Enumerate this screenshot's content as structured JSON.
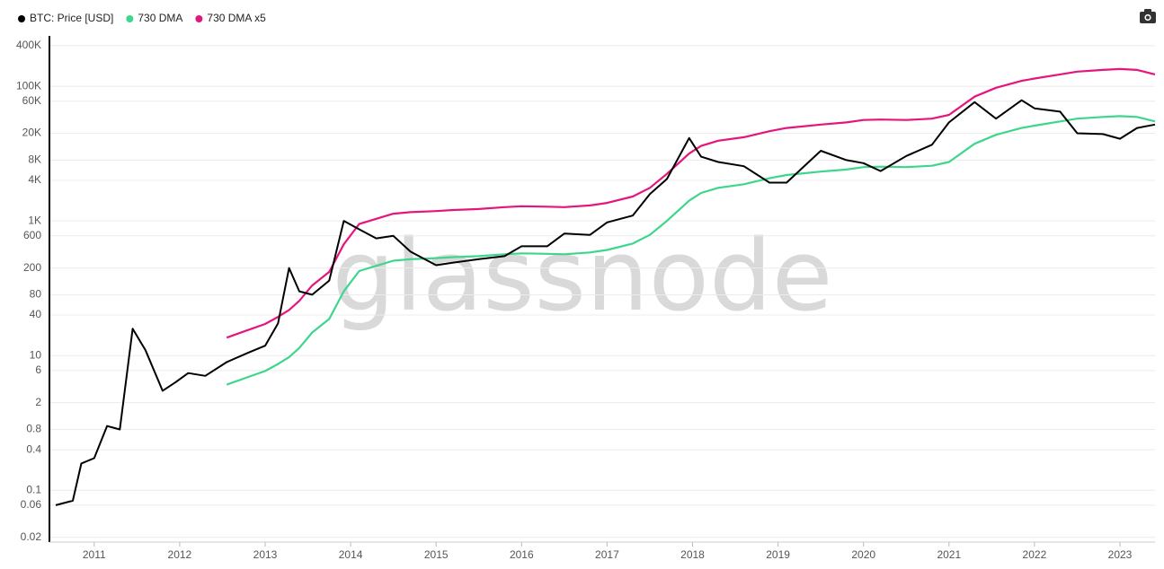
{
  "chart_data": {
    "type": "line",
    "watermark": "glassnode",
    "log_scale": true,
    "grid": true,
    "legend_position": "top-left",
    "x": [
      2010.55,
      2010.75,
      2010.85,
      2011.0,
      2011.15,
      2011.3,
      2011.45,
      2011.6,
      2011.8,
      2011.95,
      2012.1,
      2012.3,
      2012.55,
      2012.8,
      2013.0,
      2013.15,
      2013.28,
      2013.4,
      2013.55,
      2013.75,
      2013.92,
      2014.1,
      2014.3,
      2014.5,
      2014.7,
      2015.0,
      2015.2,
      2015.5,
      2015.8,
      2016.0,
      2016.3,
      2016.5,
      2016.8,
      2017.0,
      2017.3,
      2017.5,
      2017.7,
      2017.96,
      2018.1,
      2018.3,
      2018.6,
      2018.9,
      2019.1,
      2019.5,
      2019.8,
      2020.0,
      2020.2,
      2020.5,
      2020.8,
      2021.0,
      2021.3,
      2021.55,
      2021.85,
      2022.0,
      2022.3,
      2022.5,
      2022.8,
      2023.0,
      2023.2,
      2023.41
    ],
    "series": [
      {
        "name": "BTC: Price [USD]",
        "color": "#000000",
        "values": [
          0.06,
          0.07,
          0.25,
          0.3,
          0.9,
          0.8,
          25,
          12,
          3,
          4,
          5.5,
          5,
          8,
          11,
          14,
          30,
          200,
          90,
          80,
          130,
          1000,
          750,
          550,
          600,
          350,
          220,
          240,
          270,
          300,
          420,
          420,
          650,
          620,
          950,
          1200,
          2500,
          4200,
          17000,
          9000,
          7500,
          6500,
          3700,
          3700,
          11000,
          8000,
          7200,
          5500,
          9200,
          13500,
          29000,
          58000,
          33000,
          62000,
          47000,
          42000,
          20000,
          19500,
          16600,
          24000,
          27000
        ]
      },
      {
        "name": "730 DMA",
        "color": "#3dd68c",
        "values": [
          null,
          null,
          null,
          null,
          null,
          null,
          null,
          null,
          null,
          null,
          null,
          null,
          3.7,
          4.8,
          5.9,
          7.5,
          9.5,
          13,
          22,
          35,
          90,
          180,
          215,
          256,
          270,
          280,
          290,
          300,
          320,
          330,
          325,
          320,
          340,
          370,
          460,
          620,
          1000,
          2000,
          2600,
          3100,
          3500,
          4300,
          4800,
          5400,
          5800,
          6300,
          6400,
          6300,
          6600,
          7500,
          14000,
          19000,
          24000,
          26000,
          30000,
          33000,
          35000,
          36000,
          35000,
          30000
        ]
      },
      {
        "name": "730 DMA x5",
        "color": "#e5157e",
        "values": [
          null,
          null,
          null,
          null,
          null,
          null,
          null,
          null,
          null,
          null,
          null,
          null,
          18.5,
          24,
          29.5,
          37.5,
          47.5,
          65,
          110,
          175,
          450,
          900,
          1075,
          1280,
          1350,
          1400,
          1450,
          1500,
          1600,
          1650,
          1625,
          1600,
          1700,
          1850,
          2300,
          3100,
          5000,
          10000,
          13000,
          15500,
          17500,
          21500,
          24000,
          27000,
          29000,
          31500,
          32000,
          31500,
          33000,
          37500,
          70000,
          95000,
          120000,
          130000,
          150000,
          165000,
          175000,
          180000,
          175000,
          150000
        ]
      }
    ],
    "xlim": [
      2010.55,
      2023.41
    ],
    "xticks": [
      2011,
      2012,
      2013,
      2014,
      2015,
      2016,
      2017,
      2018,
      2019,
      2020,
      2021,
      2022,
      2023
    ],
    "ylim": [
      0.017,
      510000
    ],
    "yticks": [
      0.02,
      0.06,
      0.1,
      0.4,
      0.8,
      2,
      6,
      10,
      40,
      80,
      200,
      600,
      {
        "value": 1000,
        "label": "1K"
      },
      {
        "value": 4000,
        "label": "4K"
      },
      {
        "value": 8000,
        "label": "8K"
      },
      {
        "value": 20000,
        "label": "20K"
      },
      {
        "value": 60000,
        "label": "60K"
      },
      {
        "value": 100000,
        "label": "100K"
      },
      {
        "value": 400000,
        "label": "400K"
      }
    ]
  }
}
